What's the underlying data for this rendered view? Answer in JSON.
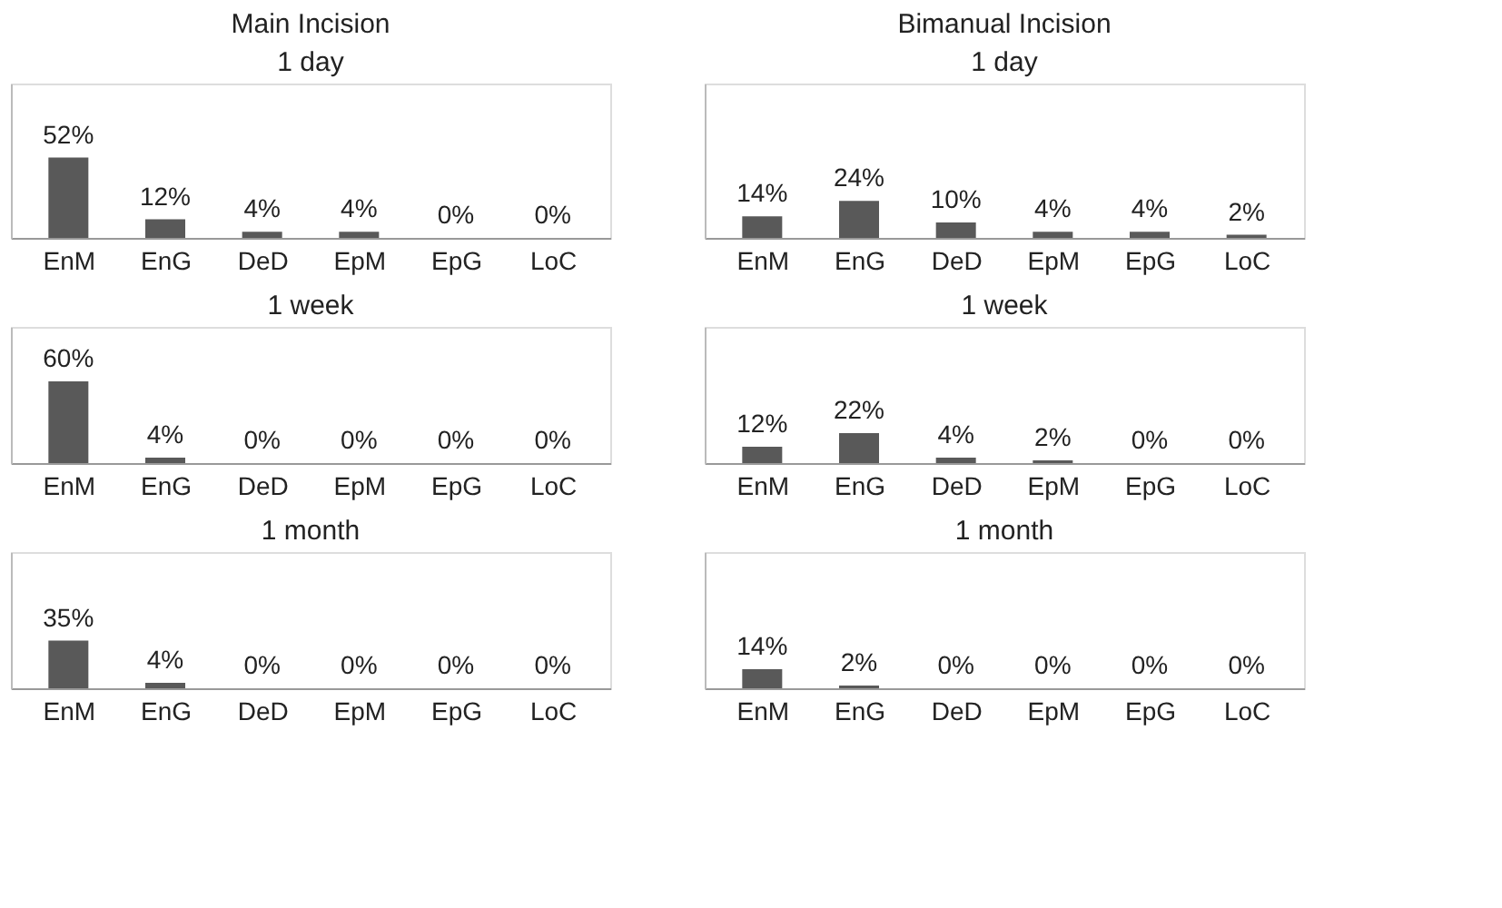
{
  "chart_data": [
    {
      "type": "bar",
      "title": "Main Incision",
      "subtitle": "1 day",
      "categories": [
        "EnM",
        "EnG",
        "DeD",
        "EpM",
        "EpG",
        "LoC"
      ],
      "values": [
        52,
        12,
        4,
        4,
        0,
        0
      ],
      "value_labels": [
        "52%",
        "12%",
        "4%",
        "4%",
        "0%",
        "0%"
      ],
      "color": "#595959",
      "ylim": [
        0,
        100
      ],
      "tick_labels": "x",
      "grid": false
    },
    {
      "type": "bar",
      "title": "Bimanual Incision",
      "subtitle": "1 day",
      "categories": [
        "EnM",
        "EnG",
        "DeD",
        "EpM",
        "EpG",
        "LoC"
      ],
      "values": [
        14,
        24,
        10,
        4,
        4,
        2
      ],
      "value_labels": [
        "14%",
        "24%",
        "10%",
        "4%",
        "4%",
        "2%"
      ],
      "color": "#595959",
      "ylim": [
        0,
        100
      ],
      "tick_labels": "x",
      "grid": false
    },
    {
      "type": "bar",
      "title": "1 week",
      "categories": [
        "EnM",
        "EnG",
        "DeD",
        "EpM",
        "EpG",
        "LoC"
      ],
      "values": [
        60,
        4,
        0,
        0,
        0,
        0
      ],
      "value_labels": [
        "60%",
        "4%",
        "0%",
        "0%",
        "0%",
        "0%"
      ],
      "color": "#595959",
      "ylim": [
        0,
        100
      ],
      "tick_labels": "x",
      "grid": false
    },
    {
      "type": "bar",
      "title": "1 week",
      "categories": [
        "EnM",
        "EnG",
        "DeD",
        "EpM",
        "EpG",
        "LoC"
      ],
      "values": [
        12,
        22,
        4,
        2,
        0,
        0
      ],
      "value_labels": [
        "12%",
        "22%",
        "4%",
        "2%",
        "0%",
        "0%"
      ],
      "color": "#595959",
      "ylim": [
        0,
        100
      ],
      "tick_labels": "x",
      "grid": false
    },
    {
      "type": "bar",
      "title": "1 month",
      "categories": [
        "EnM",
        "EnG",
        "DeD",
        "EpM",
        "EpG",
        "LoC"
      ],
      "values": [
        35,
        4,
        0,
        0,
        0,
        0
      ],
      "value_labels": [
        "35%",
        "4%",
        "0%",
        "0%",
        "0%",
        "0%"
      ],
      "color": "#595959",
      "ylim": [
        0,
        100
      ],
      "tick_labels": "x",
      "grid": false
    },
    {
      "type": "bar",
      "title": "1 month",
      "categories": [
        "EnM",
        "EnG",
        "DeD",
        "EpM",
        "EpG",
        "LoC"
      ],
      "values": [
        14,
        2,
        0,
        0,
        0,
        0
      ],
      "value_labels": [
        "14%",
        "2%",
        "0%",
        "0%",
        "0%",
        "0%"
      ],
      "color": "#595959",
      "ylim": [
        0,
        100
      ],
      "tick_labels": "x",
      "grid": false
    }
  ]
}
